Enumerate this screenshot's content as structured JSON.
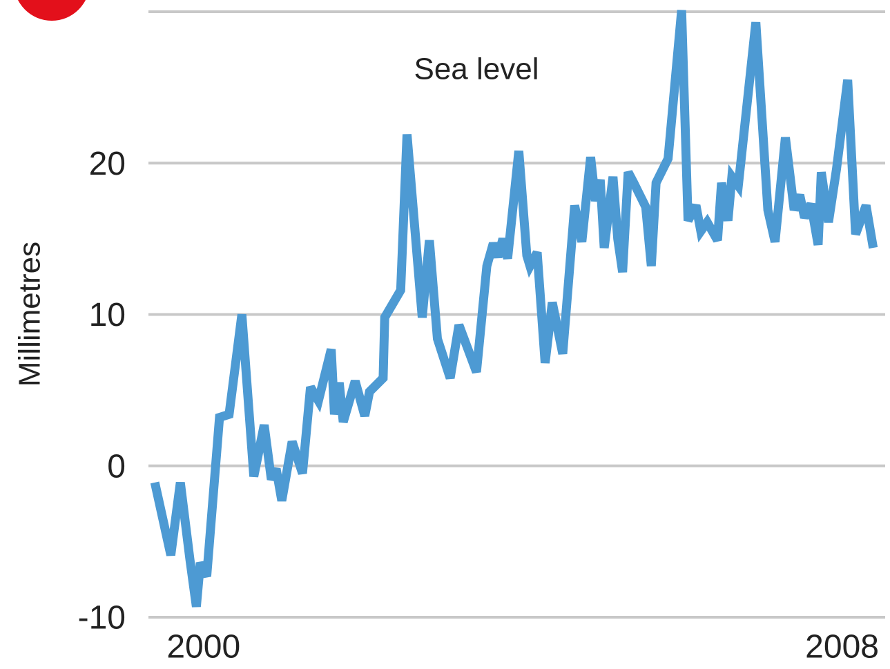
{
  "chart_data": {
    "type": "line",
    "title": "Sea level",
    "y_label": "Millimetres",
    "x": [
      1999.39,
      1999.59,
      1999.71,
      1999.83,
      1999.91,
      1999.96,
      2000.04,
      2000.2,
      2000.32,
      2000.48,
      2000.63,
      2000.76,
      2000.85,
      2000.91,
      2000.98,
      2001.11,
      2001.24,
      2001.34,
      2001.44,
      2001.6,
      2001.64,
      2001.7,
      2001.75,
      2001.9,
      2002.02,
      2002.08,
      2002.25,
      2002.27,
      2002.47,
      2002.55,
      2002.74,
      2002.83,
      2002.93,
      2003.09,
      2003.2,
      2003.42,
      2003.55,
      2003.63,
      2003.69,
      2003.75,
      2003.81,
      2003.95,
      2004.05,
      2004.09,
      2004.18,
      2004.28,
      2004.37,
      2004.5,
      2004.65,
      2004.74,
      2004.85,
      2004.91,
      2004.97,
      2005.02,
      2005.13,
      2005.19,
      2005.25,
      2005.32,
      2005.39,
      2005.54,
      2005.61,
      2005.67,
      2005.82,
      2005.99,
      2006.07,
      2006.17,
      2006.23,
      2006.31,
      2006.44,
      2006.49,
      2006.57,
      2006.62,
      2006.7,
      2006.92,
      2007.07,
      2007.16,
      2007.29,
      2007.4,
      2007.47,
      2007.53,
      2007.61,
      2007.7,
      2007.74,
      2007.83,
      2007.93,
      2008.07,
      2008.17,
      2008.3,
      2008.39
    ],
    "series": [
      {
        "name": "Sea level",
        "color": "#4d9ad3",
        "values": [
          -1.1,
          -5.9,
          -1.1,
          -6.2,
          -9.3,
          -6.4,
          -7.3,
          3.2,
          3.4,
          10.0,
          -0.7,
          2.7,
          -0.9,
          -0.2,
          -2.3,
          1.6,
          -0.5,
          5.2,
          4.3,
          7.7,
          3.4,
          5.5,
          2.9,
          5.6,
          3.3,
          4.9,
          5.8,
          9.8,
          11.6,
          21.9,
          9.8,
          14.9,
          8.4,
          5.8,
          9.3,
          6.2,
          13.2,
          14.7,
          13.8,
          15.0,
          13.7,
          20.8,
          13.9,
          13.2,
          14.1,
          6.8,
          10.8,
          7.4,
          17.2,
          14.8,
          20.4,
          17.5,
          18.9,
          14.4,
          19.1,
          15.0,
          12.8,
          19.4,
          18.7,
          17.1,
          13.2,
          18.7,
          20.3,
          30.1,
          16.2,
          17.2,
          15.5,
          16.1,
          14.9,
          18.7,
          16.2,
          19.1,
          18.5,
          29.3,
          16.9,
          14.8,
          21.7,
          16.9,
          17.9,
          16.4,
          17.3,
          14.6,
          19.4,
          16.1,
          19.6,
          25.5,
          15.3,
          17.2,
          14.4
        ]
      }
    ],
    "xlim": [
      1999.31,
      2008.54
    ],
    "xticks": [
      2000,
      2008
    ],
    "ylim": [
      -10,
      30
    ],
    "yticks": [
      -10,
      0,
      10,
      20
    ],
    "grid": true
  }
}
